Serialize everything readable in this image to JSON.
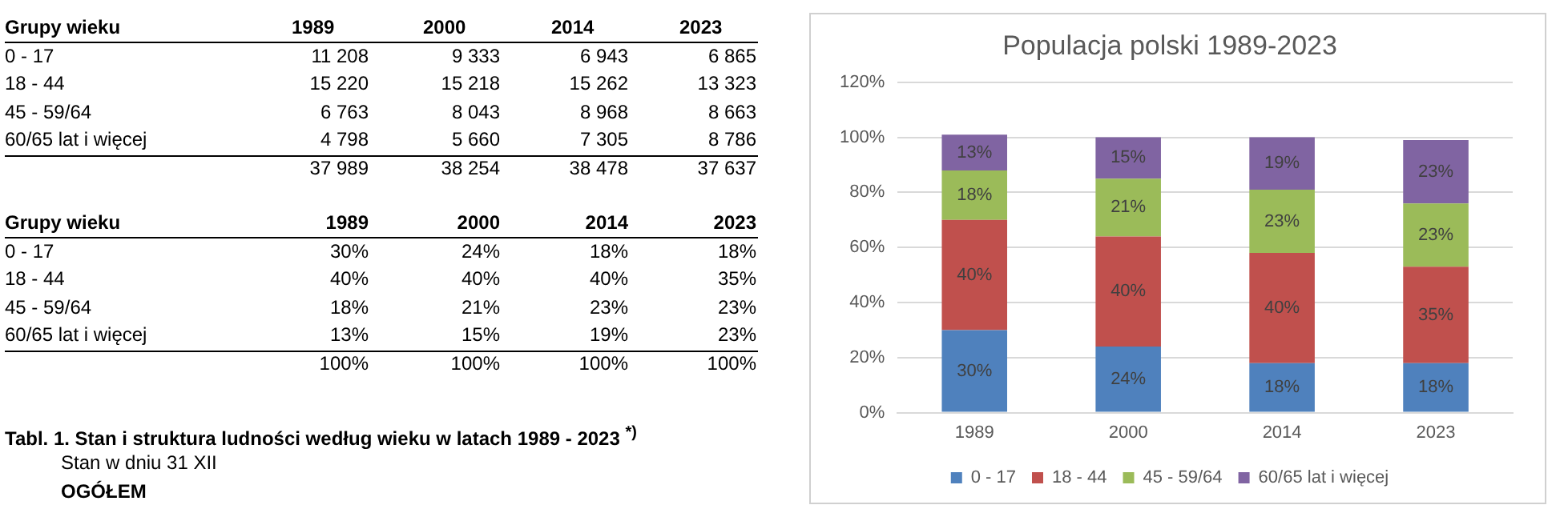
{
  "chart_data": {
    "type": "bar",
    "title": "Populacja polski 1989-2023",
    "categories": [
      "1989",
      "2000",
      "2014",
      "2023"
    ],
    "stacked": true,
    "series": [
      {
        "name": "0 - 17",
        "color": "#4f81bd",
        "values": [
          30,
          24,
          18,
          18
        ],
        "value_labels": [
          "30%",
          "24%",
          "18%",
          "18%"
        ]
      },
      {
        "name": "18 - 44",
        "color": "#c0504d",
        "values": [
          40,
          40,
          40,
          35
        ],
        "value_labels": [
          "40%",
          "40%",
          "40%",
          "35%"
        ]
      },
      {
        "name": "45 - 59/64",
        "color": "#9bbb59",
        "values": [
          18,
          21,
          23,
          23
        ],
        "value_labels": [
          "18%",
          "21%",
          "23%",
          "23%"
        ]
      },
      {
        "name": "60/65 lat i więcej",
        "color": "#8064a2",
        "values": [
          13,
          15,
          19,
          23
        ],
        "value_labels": [
          "13%",
          "15%",
          "19%",
          "23%"
        ]
      }
    ],
    "ylim": [
      0,
      120
    ],
    "yticks": [
      {
        "value": 0,
        "label": "0%"
      },
      {
        "value": 20,
        "label": "20%"
      },
      {
        "value": 40,
        "label": "40%"
      },
      {
        "value": 60,
        "label": "60%"
      },
      {
        "value": 80,
        "label": "80%"
      },
      {
        "value": 100,
        "label": "100%"
      },
      {
        "value": 120,
        "label": "120%"
      }
    ],
    "grid": "y",
    "legend": "bottom",
    "annotations": [
      "Grupy wieku",
      "1989",
      "2000",
      "2014",
      "2023",
      "0 - 17",
      "11 208",
      "9 333",
      "6 943",
      "6 865",
      "18 - 44",
      "15 220",
      "15 218",
      "15 262",
      "13 323",
      "45 - 59/64",
      "6 763",
      "8 043",
      "8 968",
      "8 663",
      "60/65 lat i więcej",
      "4 798",
      "5 660",
      "7 305",
      "8 786",
      "37 989",
      "38 254",
      "38 478",
      "37 637",
      "Grupy wieku",
      "1989",
      "2000",
      "2014",
      "2023",
      "0 - 17",
      "30%",
      "24%",
      "18%",
      "18%",
      "18 - 44",
      "40%",
      "40%",
      "40%",
      "35%",
      "45 - 59/64",
      "18%",
      "21%",
      "23%",
      "23%",
      "60/65 lat i więcej",
      "13%",
      "15%",
      "19%",
      "23%",
      "100%",
      "100%",
      "100%",
      "100%",
      "Tabl. 1. Stan i struktura ludności według wieku w latach 1989 - 2023 $^{*)}$",
      "Stan w dniu 31 XII",
      "OGÓŁEM"
    ]
  }
}
